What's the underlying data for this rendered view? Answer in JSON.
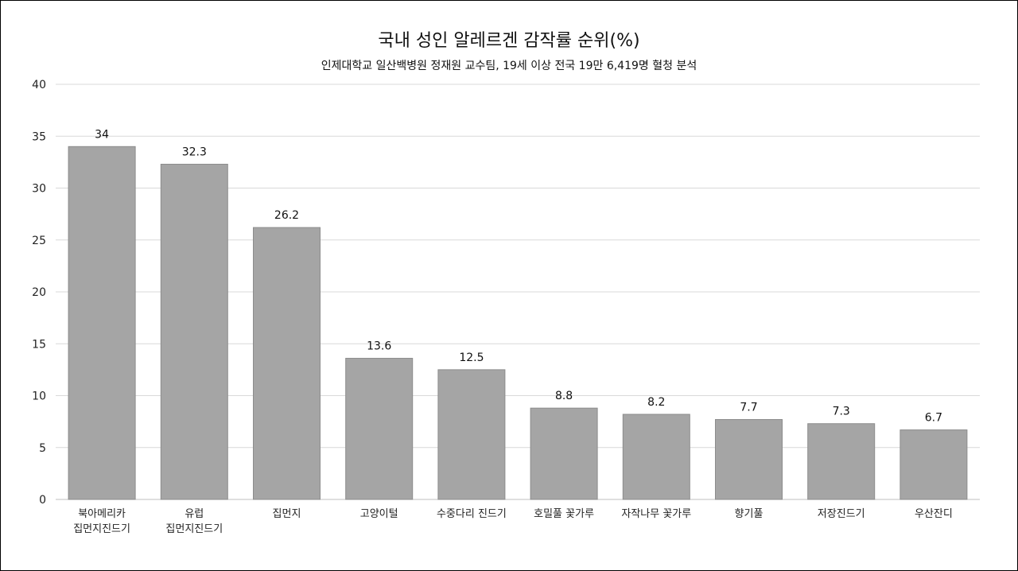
{
  "chart_data": {
    "type": "bar",
    "title": "국내 성인 알레르겐 감작률 순위(%)",
    "subtitle": "인제대학교 일산백병원 정재원 교수팀, 19세 이상 전국 19만 6,419명 혈청 분석",
    "xlabel": "",
    "ylabel": "",
    "ylim": [
      0,
      40
    ],
    "yticks": [
      0,
      5,
      10,
      15,
      20,
      25,
      30,
      35,
      40
    ],
    "grid": true,
    "legend": "none",
    "categories": [
      [
        "북아메리카",
        "집먼지진드기"
      ],
      [
        "유럽",
        "집먼지진드기"
      ],
      [
        "집먼지"
      ],
      [
        "고양이털"
      ],
      [
        "수중다리 진드기"
      ],
      [
        "호밀풀 꽃가루"
      ],
      [
        "자작나무 꽃가루"
      ],
      [
        "향기풀"
      ],
      [
        "저장진드기"
      ],
      [
        "우산잔디"
      ]
    ],
    "values": [
      34,
      32.3,
      26.2,
      13.6,
      12.5,
      8.8,
      8.2,
      7.7,
      7.3,
      6.7
    ],
    "data_labels": [
      "34",
      "32.3",
      "26.2",
      "13.6",
      "12.5",
      "8.8",
      "8.2",
      "7.7",
      "7.3",
      "6.7"
    ],
    "colors": {
      "bar": "#a5a5a5",
      "bar_stroke": "#8c8c8c",
      "grid": "#d9d9d9",
      "axis": "#bfbfbf"
    }
  }
}
